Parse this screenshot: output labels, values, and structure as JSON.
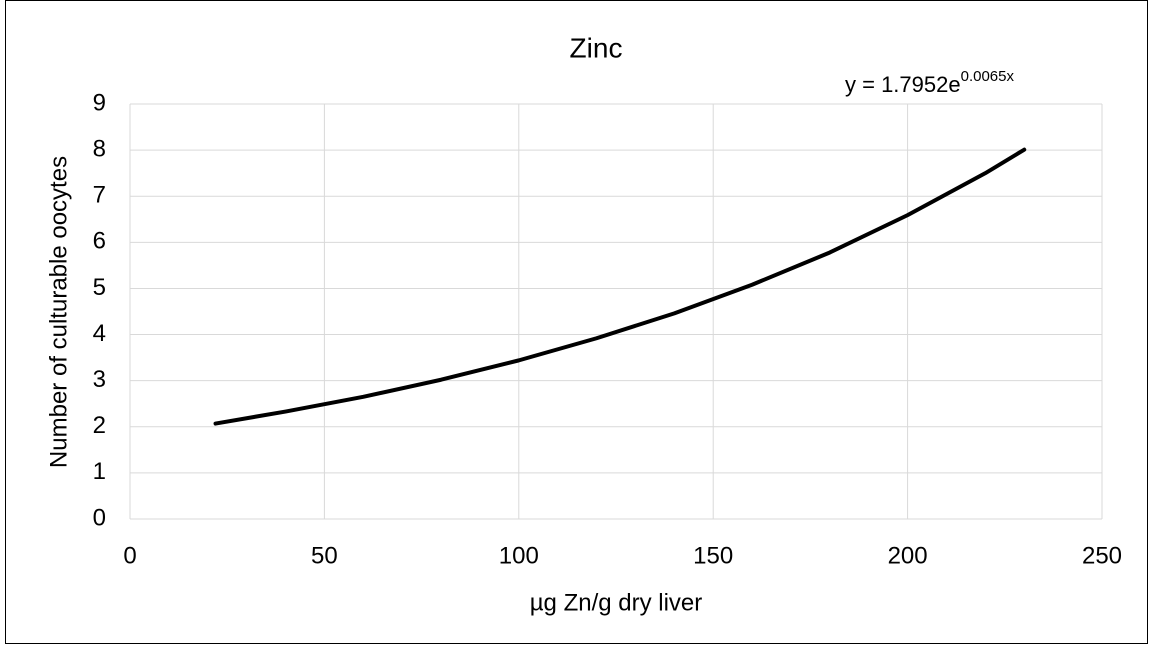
{
  "chart_data": {
    "type": "line",
    "title": "Zinc",
    "x_label": "µg Zn/g dry liver",
    "y_label": "Number of culturable oocytes",
    "annotation": {
      "text": "y = 1.7952e",
      "superscript": "0.0065x"
    },
    "x": [
      22,
      40,
      60,
      80,
      100,
      120,
      140,
      160,
      180,
      200,
      220,
      230
    ],
    "series": [
      {
        "name": "Zinc",
        "color": "#000000",
        "values": [
          2.07,
          2.33,
          2.65,
          3.02,
          3.44,
          3.92,
          4.46,
          5.08,
          5.78,
          6.59,
          7.5,
          8.01
        ]
      }
    ],
    "xlim": [
      0,
      250
    ],
    "xticks": [
      0,
      50,
      100,
      150,
      200,
      250
    ],
    "ylim": [
      0,
      9
    ],
    "yticks": [
      0,
      1,
      2,
      3,
      4,
      5,
      6,
      7,
      8,
      9
    ],
    "grid": true
  }
}
